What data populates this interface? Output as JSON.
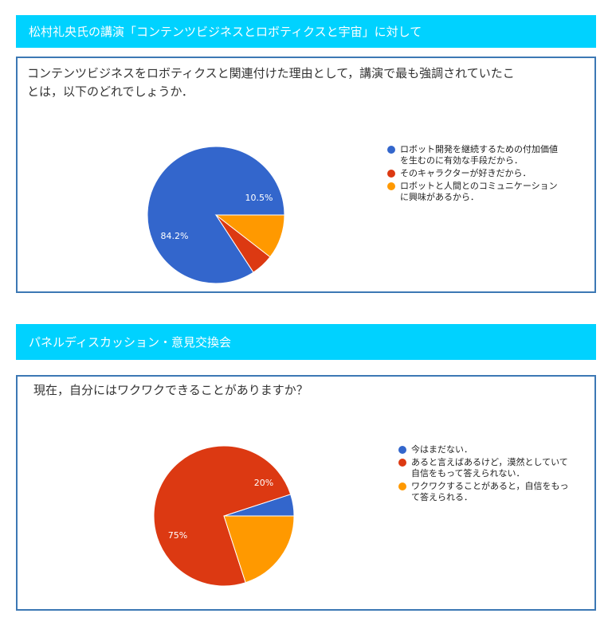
{
  "sections": [
    {
      "banner": "松村礼央氏の講演「コンテンツビジネスとロボティクスと宇宙」に対して",
      "question": "コンテンツビジネスをロボティクスと関連付けた理由として，講演で最も強調されていたこ\nとは，以下のどれでしょうか．"
    },
    {
      "banner": "パネルディスカッション・意見交換会",
      "question": "現在，自分にはワクワクできることがありますか？"
    }
  ],
  "chart_data": [
    {
      "type": "pie",
      "slices": [
        {
          "label": "ロボット開発を継続するための付加価値\nを生むのに有効な手段だから．",
          "value": 84.2,
          "color": "#3366cc",
          "data_label": "84.2%"
        },
        {
          "label": "そのキャラクターが好きだから．",
          "value": 5.3,
          "color": "#dc3912",
          "data_label": ""
        },
        {
          "label": "ロボットと人間とのコミュニケーション\nに興味があるから．",
          "value": 10.5,
          "color": "#ff9900",
          "data_label": "10.5%"
        }
      ],
      "legend_position": "right"
    },
    {
      "type": "pie",
      "slices": [
        {
          "label": "今はまだない．",
          "value": 5,
          "color": "#3366cc",
          "data_label": ""
        },
        {
          "label": "あると言えばあるけど，漠然としていて\n自信をもって答えられない．",
          "value": 75,
          "color": "#dc3912",
          "data_label": "75%"
        },
        {
          "label": "ワクワクすることがあると，自信をもっ\nて答えられる．",
          "value": 20,
          "color": "#ff9900",
          "data_label": "20%"
        }
      ],
      "legend_position": "right"
    }
  ]
}
